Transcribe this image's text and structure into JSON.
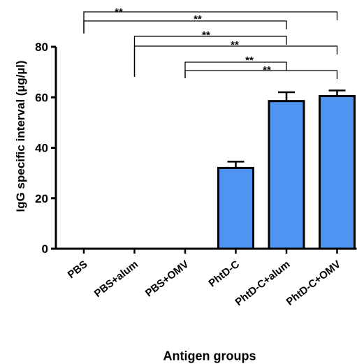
{
  "chart_data": {
    "type": "bar",
    "xlabel": "Antigen groups",
    "ylabel": "IgG specific interval (µg/µl)",
    "categories": [
      "PBS",
      "PBS+alum",
      "PBS+OMV",
      "PhtD-C",
      "PhtD-C+alum",
      "PhtD-C+OMV"
    ],
    "values": [
      0,
      0,
      0,
      32,
      58.5,
      60.5
    ],
    "errors": [
      0,
      0,
      0,
      2.5,
      3.5,
      2.2
    ],
    "ylim": [
      0,
      80
    ],
    "yticks": [
      0,
      20,
      40,
      60,
      80
    ],
    "bar_color": "#4f94f0",
    "significance": [
      {
        "from": "PBS",
        "to": "PhtD-C+alum",
        "label": "**"
      },
      {
        "from": "PBS",
        "to": "PhtD-C+OMV",
        "label": "**"
      },
      {
        "from": "PBS+alum",
        "to": "PhtD-C+OMV",
        "label": "**"
      },
      {
        "from": "PBS+alum",
        "to": "PhtD-C+alum",
        "label": "**"
      },
      {
        "from": "PBS+OMV",
        "to": "PhtD-C+OMV",
        "label": "**"
      },
      {
        "from": "PBS+OMV",
        "to": "PhtD-C+alum",
        "label": "**"
      }
    ]
  }
}
